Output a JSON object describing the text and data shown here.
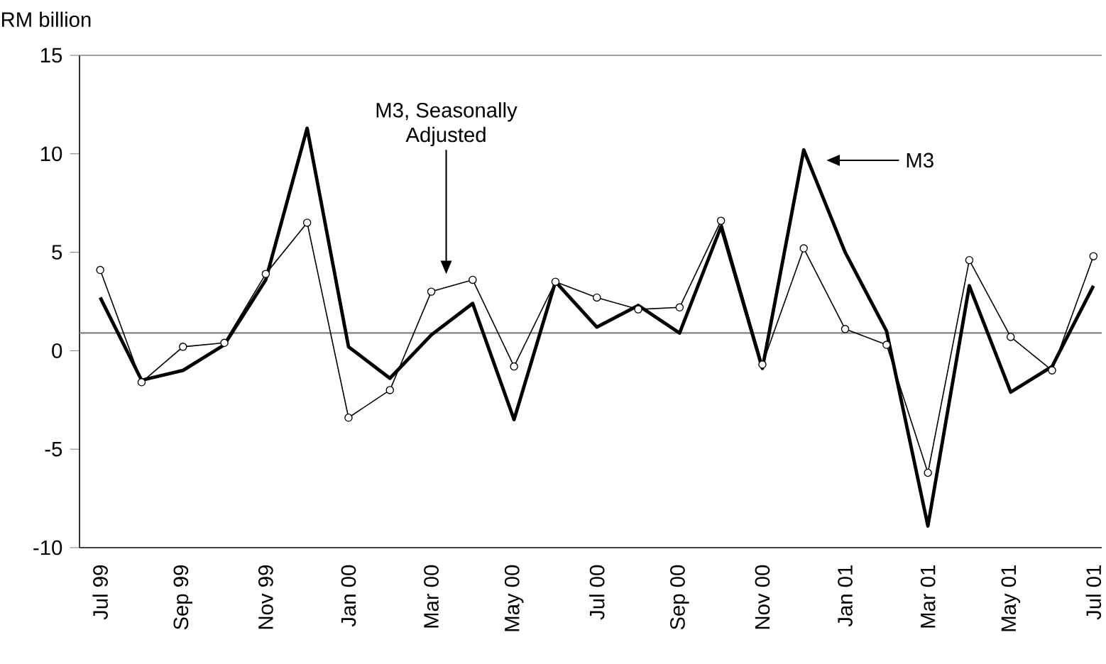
{
  "chart_data": {
    "type": "line",
    "ylabel": "RM billion",
    "categories": [
      "Jul 99",
      null,
      "Sep 99",
      null,
      "Nov 99",
      null,
      "Jan 00",
      null,
      "Mar 00",
      null,
      "May 00",
      null,
      "Jul 00",
      null,
      "Sep 00",
      null,
      "Nov 00",
      null,
      "Jan 01",
      null,
      "Mar 01",
      null,
      "May 01",
      null,
      "Jul 01"
    ],
    "series": [
      {
        "color": "#000000",
        "marker": "none",
        "values": [
          2.7,
          -1.5,
          -1.0,
          0.3,
          3.6,
          11.3,
          0.2,
          -1.4,
          0.8,
          2.4,
          -3.5,
          3.5,
          1.2,
          2.3,
          0.9,
          6.3,
          -0.9,
          10.2,
          5.0,
          1.0,
          -8.9,
          3.3,
          -2.1,
          -0.8,
          3.3
        ]
      },
      {
        "color": "#000000",
        "marker": "circle",
        "values": [
          4.1,
          -1.6,
          0.2,
          0.4,
          3.9,
          6.5,
          -3.4,
          -2.0,
          3.0,
          3.6,
          -0.8,
          3.5,
          2.7,
          2.1,
          2.2,
          6.6,
          -0.7,
          5.2,
          1.1,
          0.3,
          -6.2,
          4.6,
          0.7,
          -1.0,
          4.8
        ]
      }
    ],
    "annotations": [
      "M3",
      "M3, Seasonally Adjusted"
    ],
    "ylim": [
      -10,
      15
    ],
    "yticks": [
      -10,
      -5,
      0,
      5,
      10,
      15
    ],
    "grid": false,
    "ref_lines": [
      {
        "axis": "y",
        "value": 0.9,
        "color": "#808080"
      }
    ]
  }
}
